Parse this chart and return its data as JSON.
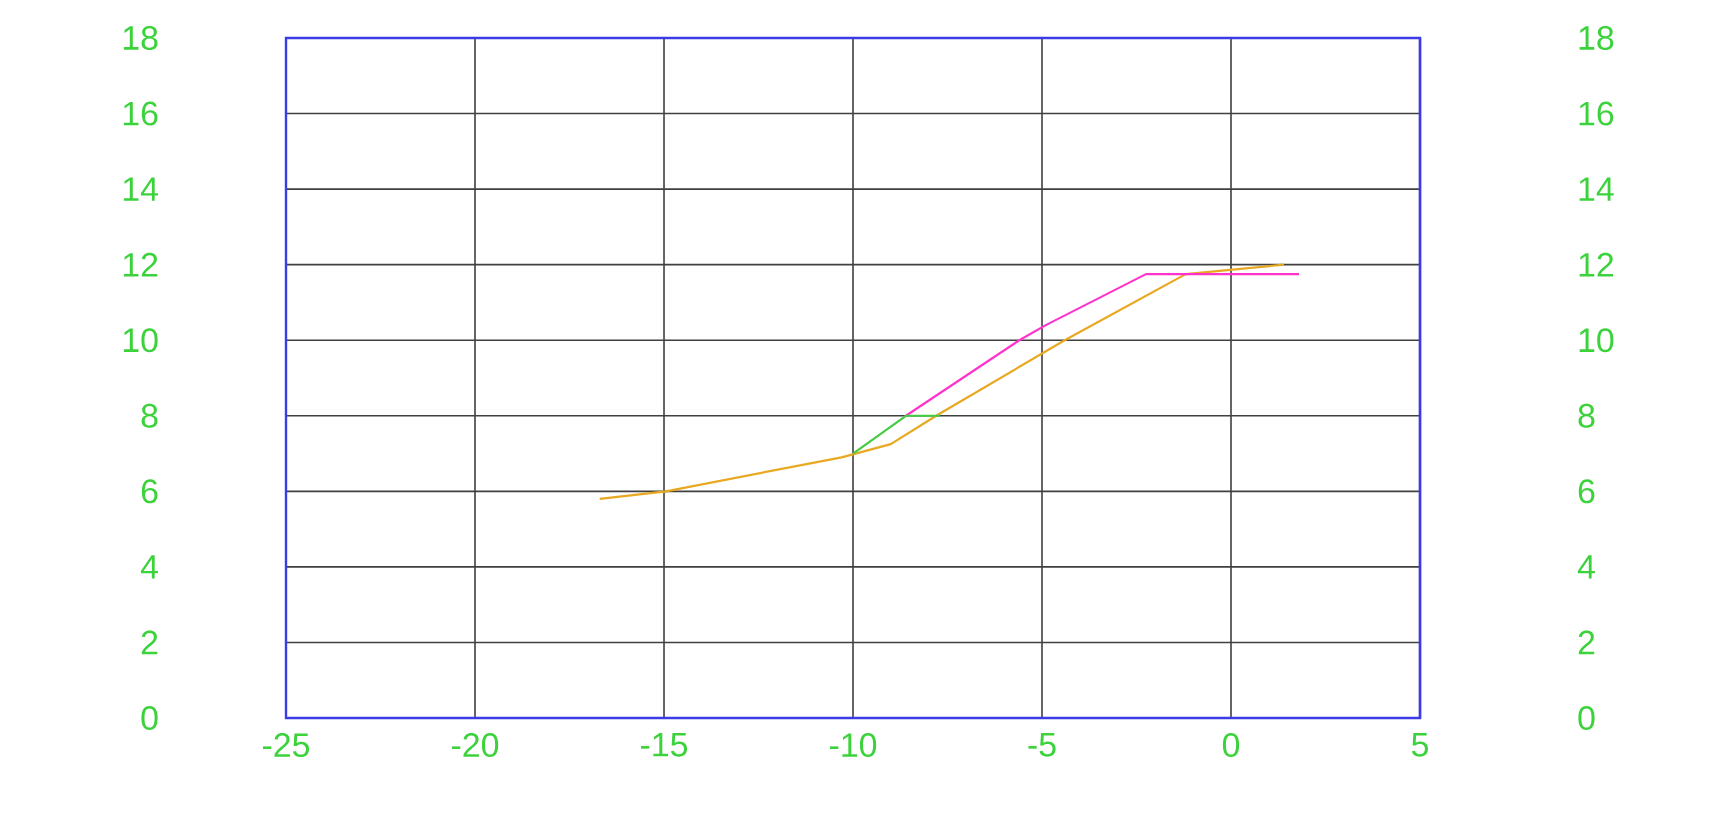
{
  "chart_data": {
    "type": "line",
    "xlim": [
      -25,
      5
    ],
    "xticks": [
      -25,
      -20,
      -15,
      -10,
      -5,
      0,
      5
    ],
    "ylim": [
      0,
      18
    ],
    "yticks": [
      0,
      2,
      4,
      6,
      8,
      10,
      12,
      14,
      16,
      18
    ],
    "y2lim": [
      0,
      18
    ],
    "y2ticks": [
      0,
      2,
      4,
      6,
      8,
      10,
      12,
      14,
      16,
      18
    ],
    "grid": true,
    "series": [
      {
        "color": "#e8a820",
        "x": [
          -16.7,
          -14.95,
          -10.3,
          -9.0,
          -7.8,
          -4.4,
          -1.2,
          1.4
        ],
        "values": [
          5.8,
          6.0,
          6.9,
          7.25,
          8.0,
          10.0,
          11.75,
          12.0
        ]
      },
      {
        "color": "#ff33cc",
        "x": [
          -8.6,
          -5.6,
          -4.9,
          -2.25,
          1.8
        ],
        "values": [
          8.0,
          10.0,
          10.4,
          11.75,
          11.75
        ]
      },
      {
        "color": "#44cc44",
        "x": [
          -10.0,
          -8.6,
          -7.7
        ],
        "values": [
          7.0,
          8.0,
          8.0
        ]
      }
    ]
  }
}
